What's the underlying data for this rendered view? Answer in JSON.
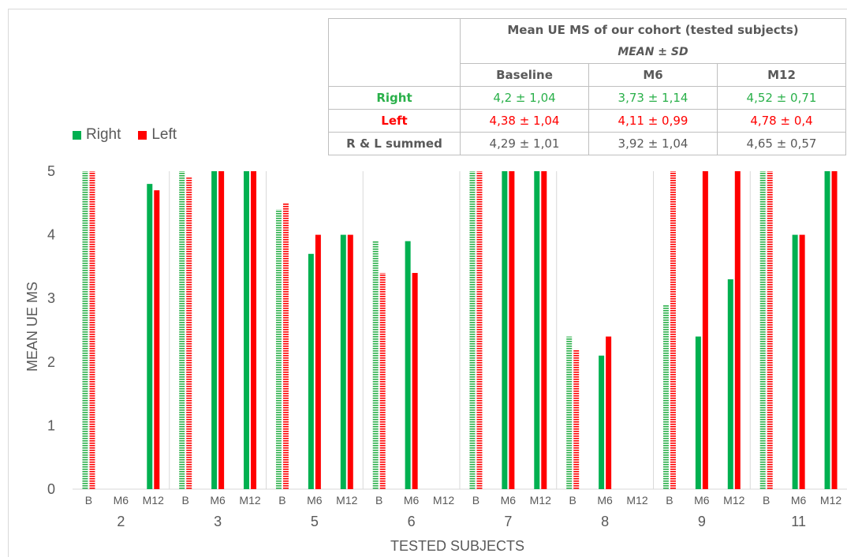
{
  "chart_data": {
    "type": "bar",
    "xlabel": "TESTED SUBJECTS",
    "ylabel": "MEAN UE MS",
    "ylim": [
      0,
      5
    ],
    "yticks": [
      "0",
      "1",
      "2",
      "3",
      "4",
      "5"
    ],
    "timepoints": [
      "B",
      "M6",
      "M12"
    ],
    "subjects": [
      "2",
      "3",
      "5",
      "6",
      "7",
      "8",
      "9",
      "11"
    ],
    "series": [
      {
        "name": "Right",
        "color": "#00b050",
        "values": [
          [
            5,
            null,
            4.8
          ],
          [
            5,
            5,
            5
          ],
          [
            4.4,
            3.7,
            4
          ],
          [
            3.9,
            3.9,
            null
          ],
          [
            5,
            5,
            5
          ],
          [
            2.4,
            2.1,
            null
          ],
          [
            2.9,
            2.4,
            3.3
          ],
          [
            5,
            4,
            5
          ]
        ]
      },
      {
        "name": "Left",
        "color": "#ff0000",
        "values": [
          [
            5,
            null,
            4.7
          ],
          [
            4.9,
            5,
            5
          ],
          [
            4.5,
            4,
            4
          ],
          [
            3.4,
            3.4,
            null
          ],
          [
            5,
            5,
            5
          ],
          [
            2.2,
            2.4,
            null
          ],
          [
            5,
            5,
            5
          ],
          [
            5,
            4,
            5
          ]
        ]
      }
    ],
    "baseline_style": "dashed",
    "grid": "vertical-separators",
    "legend_position": "top-left"
  },
  "legend": {
    "right_label": "Right",
    "left_label": "Left"
  },
  "table": {
    "title": "Mean UE MS of our cohort (tested subjects)",
    "subtitle": "MEAN ± SD",
    "columns": [
      "Baseline",
      "M6",
      "M12"
    ],
    "rows": [
      {
        "label": "Right",
        "cells": [
          "4,2 ± 1,04",
          "3,73 ± 1,14",
          "4,52 ± 0,71"
        ]
      },
      {
        "label": "Left",
        "cells": [
          "4,38 ± 1,04",
          "4,11 ± 0,99",
          "4,78 ± 0,4"
        ]
      },
      {
        "label": "R & L summed",
        "cells": [
          "4,29 ± 1,01",
          "3,92 ± 1,04",
          "4,65 ± 0,57"
        ]
      }
    ]
  }
}
